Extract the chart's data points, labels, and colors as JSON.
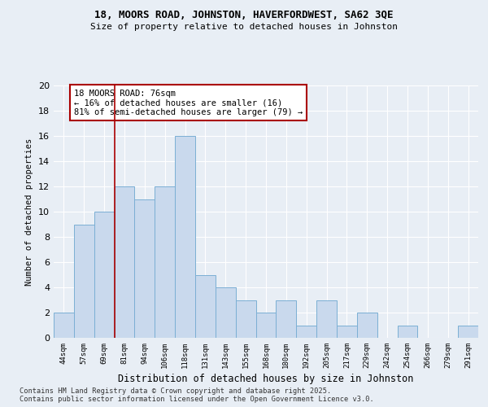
{
  "title_line1": "18, MOORS ROAD, JOHNSTON, HAVERFORDWEST, SA62 3QE",
  "title_line2": "Size of property relative to detached houses in Johnston",
  "xlabel": "Distribution of detached houses by size in Johnston",
  "ylabel": "Number of detached properties",
  "categories": [
    "44sqm",
    "57sqm",
    "69sqm",
    "81sqm",
    "94sqm",
    "106sqm",
    "118sqm",
    "131sqm",
    "143sqm",
    "155sqm",
    "168sqm",
    "180sqm",
    "192sqm",
    "205sqm",
    "217sqm",
    "229sqm",
    "242sqm",
    "254sqm",
    "266sqm",
    "279sqm",
    "291sqm"
  ],
  "values": [
    2,
    9,
    10,
    12,
    11,
    12,
    16,
    5,
    4,
    3,
    2,
    3,
    1,
    3,
    1,
    2,
    0,
    1,
    0,
    0,
    1
  ],
  "bar_color": "#c9d9ed",
  "bar_edge_color": "#7bafd4",
  "bg_color": "#e8eef5",
  "grid_color": "#ffffff",
  "vline_color": "#aa0000",
  "vline_x_index": 2.5,
  "annotation_text": "18 MOORS ROAD: 76sqm\n← 16% of detached houses are smaller (16)\n81% of semi-detached houses are larger (79) →",
  "annotation_box_color": "#ffffff",
  "annotation_box_edge": "#aa0000",
  "footer_text": "Contains HM Land Registry data © Crown copyright and database right 2025.\nContains public sector information licensed under the Open Government Licence v3.0.",
  "ylim": [
    0,
    20
  ],
  "yticks": [
    0,
    2,
    4,
    6,
    8,
    10,
    12,
    14,
    16,
    18,
    20
  ]
}
